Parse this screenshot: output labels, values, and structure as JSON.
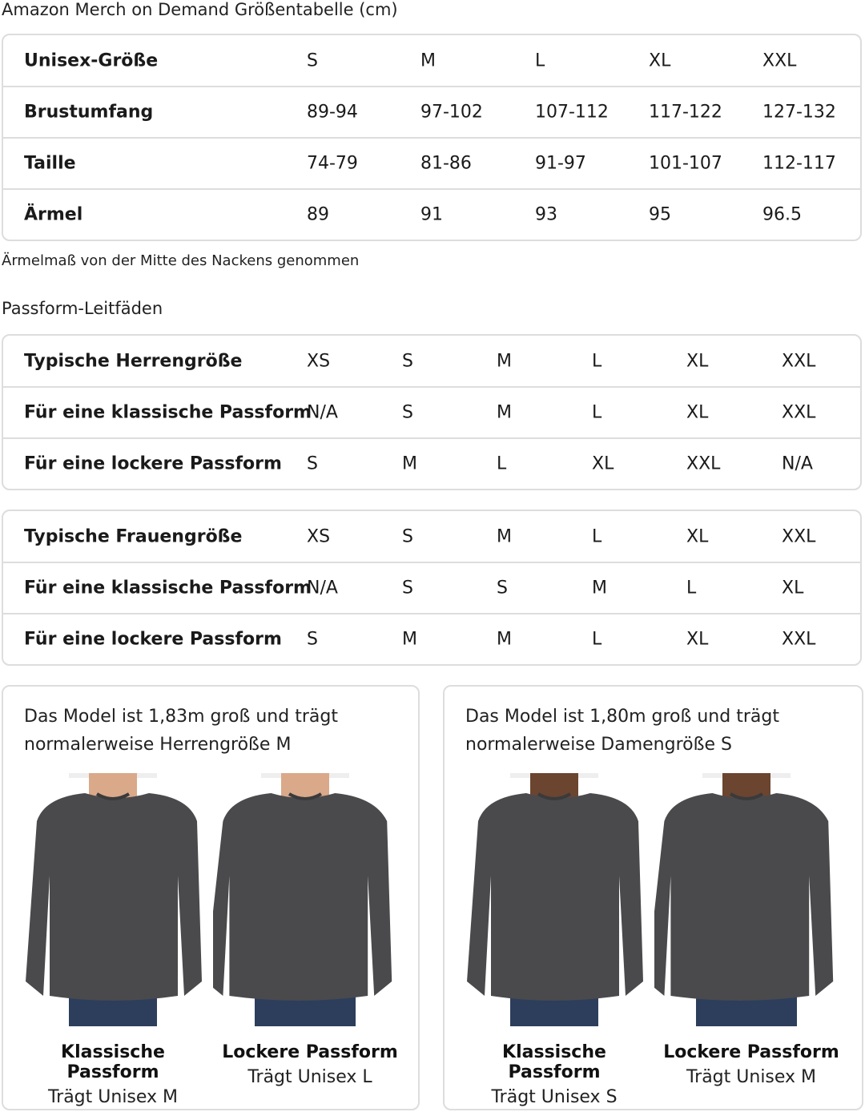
{
  "title": "Amazon Merch on Demand Größentabelle (cm)",
  "unisex_table": {
    "rows": [
      {
        "label": "Unisex-Größe",
        "values": [
          "S",
          "M",
          "L",
          "XL",
          "XXL"
        ]
      },
      {
        "label": "Brustumfang",
        "values": [
          "89-94",
          "97-102",
          "107-112",
          "117-122",
          "127-132"
        ]
      },
      {
        "label": "Taille",
        "values": [
          "74-79",
          "81-86",
          "91-97",
          "101-107",
          "112-117"
        ]
      },
      {
        "label": "Ärmel",
        "values": [
          "89",
          "91",
          "93",
          "95",
          "96.5"
        ]
      }
    ]
  },
  "sleeve_note": "Ärmelmaß von der Mitte des Nackens genommen",
  "fit_guides_title": "Passform-Leitfäden",
  "men_table": {
    "rows": [
      {
        "label": "Typische Herrengröße",
        "values": [
          "XS",
          "S",
          "M",
          "L",
          "XL",
          "XXL"
        ]
      },
      {
        "label": "Für eine klassische Passform",
        "values": [
          "N/A",
          "S",
          "M",
          "L",
          "XL",
          "XXL"
        ]
      },
      {
        "label": "Für eine lockere Passform",
        "values": [
          "S",
          "M",
          "L",
          "XL",
          "XXL",
          "N/A"
        ]
      }
    ]
  },
  "women_table": {
    "rows": [
      {
        "label": "Typische Frauengröße",
        "values": [
          "XS",
          "S",
          "M",
          "L",
          "XL",
          "XXL"
        ]
      },
      {
        "label": "Für eine klassische Passform",
        "values": [
          "N/A",
          "S",
          "S",
          "M",
          "L",
          "XL"
        ]
      },
      {
        "label": "Für eine lockere Passform",
        "values": [
          "S",
          "M",
          "M",
          "L",
          "XL",
          "XXL"
        ]
      }
    ]
  },
  "cards": [
    {
      "caption": "Das Model ist 1,83m groß und trägt normalerweise Herrengröße M",
      "fits": [
        {
          "name": "Klassische Passform",
          "wears": "Trägt Unisex M"
        },
        {
          "name": "Lockere Passform",
          "wears": "Trägt Unisex L"
        }
      ]
    },
    {
      "caption": "Das Model ist 1,80m groß und trägt normalerweise Damengröße S",
      "fits": [
        {
          "name": "Klassische Passform",
          "wears": "Trägt Unisex S"
        },
        {
          "name": "Lockere Passform",
          "wears": "Trägt Unisex M"
        }
      ]
    }
  ],
  "colors": {
    "sweater": "#4a4a4c",
    "jeans": "#2c3e5c",
    "skin_men": "#d9a98a",
    "skin_women": "#6b4530",
    "border": "#dddddd"
  }
}
